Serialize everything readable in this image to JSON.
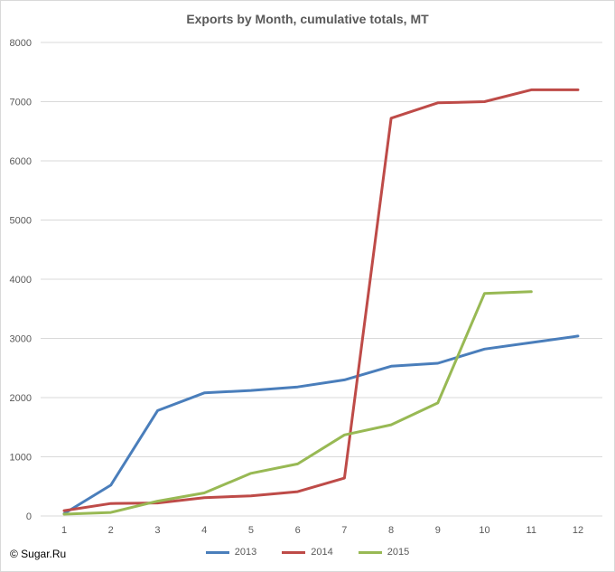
{
  "credit": "© Sugar.Ru",
  "chart_data": {
    "type": "line",
    "title": "Exports by Month, cumulative totals, MT",
    "xlabel": "",
    "ylabel": "",
    "categories": [
      "1",
      "2",
      "3",
      "4",
      "5",
      "6",
      "7",
      "8",
      "9",
      "10",
      "11",
      "12"
    ],
    "ylim": [
      0,
      8000
    ],
    "yticks": [
      0,
      1000,
      2000,
      3000,
      4000,
      5000,
      6000,
      7000,
      8000
    ],
    "grid": true,
    "legend_position": "bottom",
    "series": [
      {
        "name": "2013",
        "color": "#4a7ebb",
        "values": [
          40,
          520,
          1780,
          2080,
          2120,
          2180,
          2300,
          2530,
          2580,
          2820,
          2930,
          3040
        ]
      },
      {
        "name": "2014",
        "color": "#be4b48",
        "values": [
          90,
          210,
          220,
          310,
          340,
          410,
          640,
          6720,
          6980,
          7000,
          7200,
          7200
        ]
      },
      {
        "name": "2015",
        "color": "#98b954",
        "values": [
          30,
          60,
          250,
          390,
          720,
          880,
          1370,
          1540,
          1910,
          3760,
          3790,
          null
        ]
      }
    ]
  }
}
